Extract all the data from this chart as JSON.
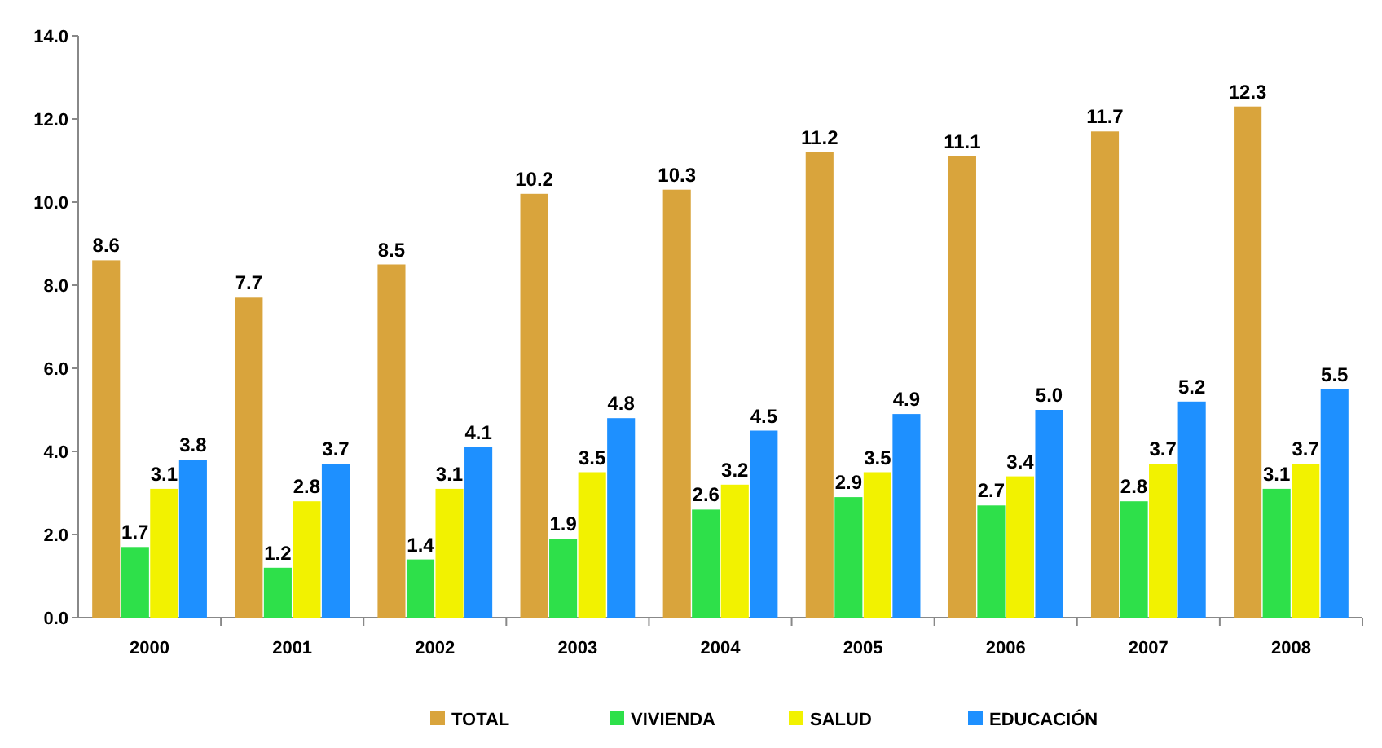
{
  "chart_data": {
    "type": "bar",
    "categories": [
      "2000",
      "2001",
      "2002",
      "2003",
      "2004",
      "2005",
      "2006",
      "2007",
      "2008"
    ],
    "series": [
      {
        "name": "TOTAL",
        "color": "#d9a43c",
        "values": [
          8.6,
          7.7,
          8.5,
          10.2,
          10.3,
          11.2,
          11.1,
          11.7,
          12.3
        ],
        "value_labels": [
          "8.6",
          "7.7",
          "8.5",
          "10.2",
          "10.3",
          "11.2",
          "11.1",
          "11.7",
          "12.3"
        ]
      },
      {
        "name": "VIVIENDA",
        "color": "#2ee04a",
        "values": [
          1.7,
          1.2,
          1.4,
          1.9,
          2.6,
          2.9,
          2.7,
          2.8,
          3.1
        ],
        "value_labels": [
          "1.7",
          "1.2",
          "1.4",
          "1.9",
          "2.6",
          "2.9",
          "2.7",
          "2.8",
          "3.1"
        ]
      },
      {
        "name": "SALUD",
        "color": "#f2f200",
        "values": [
          3.1,
          2.8,
          3.1,
          3.5,
          3.2,
          3.5,
          3.4,
          3.7,
          3.7
        ],
        "value_labels": [
          "3.1",
          "2.8",
          "3.1",
          "3.5",
          "3.2",
          "3.5",
          "3.4",
          "3.7",
          "3.7"
        ]
      },
      {
        "name": "EDUCACIÓN",
        "color": "#1e90ff",
        "values": [
          3.8,
          3.7,
          4.1,
          4.8,
          4.5,
          4.9,
          5.0,
          5.2,
          5.5
        ],
        "value_labels": [
          "3.8",
          "3.7",
          "4.1",
          "4.8",
          "4.5",
          "4.9",
          "5.0",
          "5.2",
          "5.5"
        ]
      }
    ],
    "ylim": [
      0,
      14
    ],
    "yticks": [
      {
        "value": 0,
        "label": "0.0"
      },
      {
        "value": 2,
        "label": "2.0"
      },
      {
        "value": 4,
        "label": "4.0"
      },
      {
        "value": 6,
        "label": "6.0"
      },
      {
        "value": 8,
        "label": "8.0"
      },
      {
        "value": 10,
        "label": "10.0"
      },
      {
        "value": 12,
        "label": "12.0"
      },
      {
        "value": 14,
        "label": "14.0"
      }
    ],
    "legend": "bottom"
  }
}
